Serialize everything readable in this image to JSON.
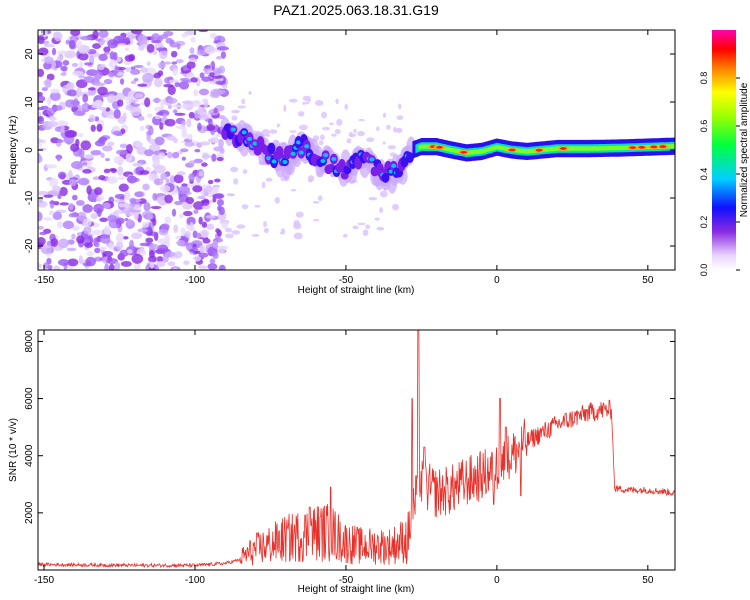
{
  "title": "PAZ1.2025.063.18.31.G19",
  "chart_data": [
    {
      "type": "heatmap",
      "xlabel": "Height of straight line (km)",
      "ylabel": "Frequency (Hz)",
      "xlim": [
        -152,
        59
      ],
      "ylim": [
        -25,
        25
      ],
      "xticks": [
        -150,
        -100,
        -50,
        0,
        50
      ],
      "yticks": [
        -20,
        -10,
        0,
        10,
        20
      ],
      "colorbar": {
        "label": "Normalized spectral amplitude",
        "range": [
          0,
          1
        ],
        "ticks": [
          "0.0",
          "0.2",
          "0.4",
          "0.6",
          "0.8"
        ],
        "colormap": "rainbow (white/violet → blue → cyan → green → yellow → orange → red → magenta)"
      },
      "ridge": [
        {
          "x": -90,
          "y": 4
        },
        {
          "x": -85,
          "y": 3
        },
        {
          "x": -80,
          "y": 1
        },
        {
          "x": -75,
          "y": -1
        },
        {
          "x": -70,
          "y": -2
        },
        {
          "x": -65,
          "y": 1
        },
        {
          "x": -60,
          "y": -1
        },
        {
          "x": -55,
          "y": -3
        },
        {
          "x": -50,
          "y": -4
        },
        {
          "x": -45,
          "y": -2
        },
        {
          "x": -40,
          "y": -4
        },
        {
          "x": -35,
          "y": -5
        },
        {
          "x": -30,
          "y": -3
        },
        {
          "x": -28,
          "y": 0
        },
        {
          "x": -25,
          "y": 0.7
        },
        {
          "x": -20,
          "y": 0.7
        },
        {
          "x": -15,
          "y": 0
        },
        {
          "x": -10,
          "y": -0.6
        },
        {
          "x": -5,
          "y": -0.3
        },
        {
          "x": 0,
          "y": 0.6
        },
        {
          "x": 5,
          "y": 0
        },
        {
          "x": 10,
          "y": -0.3
        },
        {
          "x": 15,
          "y": 0
        },
        {
          "x": 20,
          "y": 0.3
        },
        {
          "x": 30,
          "y": 0.3
        },
        {
          "x": 40,
          "y": 0.4
        },
        {
          "x": 50,
          "y": 0.6
        },
        {
          "x": 59,
          "y": 0.8
        }
      ]
    },
    {
      "type": "line",
      "xlabel": "Height of straight line (km)",
      "ylabel": "SNR (10 * v/v)",
      "xlim": [
        -152,
        59
      ],
      "ylim": [
        0,
        8400
      ],
      "xticks": [
        -150,
        -100,
        -50,
        0,
        50
      ],
      "yticks": [
        2000,
        4000,
        6000,
        8000
      ],
      "color": "#e8302a",
      "envelope": [
        {
          "x": -152,
          "y": 180
        },
        {
          "x": -120,
          "y": 150
        },
        {
          "x": -100,
          "y": 150
        },
        {
          "x": -90,
          "y": 220
        },
        {
          "x": -85,
          "y": 350
        },
        {
          "x": -80,
          "y": 600
        },
        {
          "x": -70,
          "y": 900
        },
        {
          "x": -60,
          "y": 1100
        },
        {
          "x": -55,
          "y": 1100
        },
        {
          "x": -50,
          "y": 800
        },
        {
          "x": -45,
          "y": 700
        },
        {
          "x": -40,
          "y": 700
        },
        {
          "x": -35,
          "y": 700
        },
        {
          "x": -30,
          "y": 900
        },
        {
          "x": -27,
          "y": 2400
        },
        {
          "x": -25,
          "y": 3000
        },
        {
          "x": -20,
          "y": 2700
        },
        {
          "x": -15,
          "y": 2800
        },
        {
          "x": -10,
          "y": 3100
        },
        {
          "x": -5,
          "y": 3300
        },
        {
          "x": 0,
          "y": 3600
        },
        {
          "x": 5,
          "y": 4000
        },
        {
          "x": 10,
          "y": 4500
        },
        {
          "x": 15,
          "y": 4800
        },
        {
          "x": 20,
          "y": 5100
        },
        {
          "x": 25,
          "y": 5300
        },
        {
          "x": 30,
          "y": 5500
        },
        {
          "x": 35,
          "y": 5600
        },
        {
          "x": 38,
          "y": 5600
        },
        {
          "x": 39,
          "y": 2850
        },
        {
          "x": 45,
          "y": 2800
        },
        {
          "x": 50,
          "y": 2800
        },
        {
          "x": 55,
          "y": 2750
        },
        {
          "x": 59,
          "y": 2700
        }
      ],
      "spikes": [
        {
          "x": -26,
          "y": 8400
        },
        {
          "x": -28,
          "y": 6000
        },
        {
          "x": -24,
          "y": 4300
        },
        {
          "x": -55,
          "y": 2900
        },
        {
          "x": -62,
          "y": 2200
        },
        {
          "x": 1,
          "y": 6000
        },
        {
          "x": 3,
          "y": 5000
        },
        {
          "x": -1,
          "y": 2300
        },
        {
          "x": 8,
          "y": 2600
        }
      ]
    }
  ]
}
